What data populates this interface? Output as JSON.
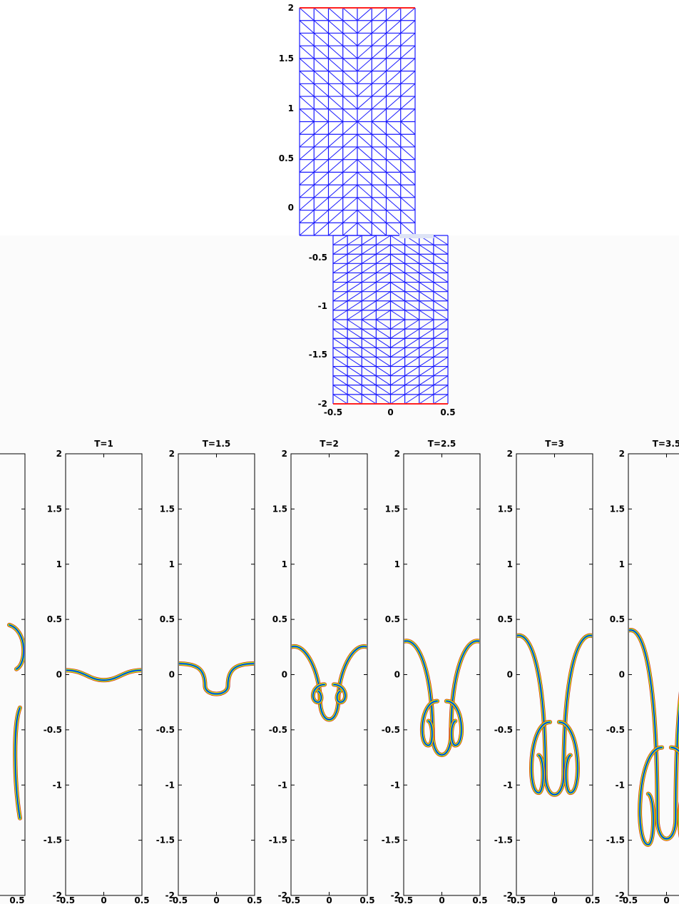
{
  "chart_data": [
    {
      "type": "mesh",
      "title": "",
      "xlim": [
        -0.5,
        0.5
      ],
      "ylim": [
        -2,
        2
      ],
      "x_ticks": [
        "-0.5",
        "0",
        "0.5"
      ],
      "y_ticks_upper": [
        "2",
        "1.5",
        "1",
        "0.5",
        "0"
      ],
      "y_ticks_lower": [
        "-0.5",
        "-1",
        "-1.5",
        "-2"
      ],
      "grid_cols": 8,
      "grid_rows_upper": 18,
      "grid_rows_lower": 18,
      "mesh_color": "#1a1aff",
      "boundary_color": "#ff2020"
    },
    {
      "type": "contour",
      "panels": [
        {
          "title": "",
          "interface_depth": 0.3
        },
        {
          "title": "T=1",
          "interface_depth": 0.05
        },
        {
          "title": "T=1.5",
          "interface_depth": 0.18
        },
        {
          "title": "T=2",
          "interface_depth": 0.42
        },
        {
          "title": "T=2.5",
          "interface_depth": 0.74
        },
        {
          "title": "T=3",
          "interface_depth": 1.1
        },
        {
          "title": "T=3.5",
          "interface_depth": 1.5
        }
      ],
      "xlim": [
        -0.5,
        0.5
      ],
      "ylim": [
        -2,
        2
      ],
      "x_ticks": [
        "-0.5",
        "0",
        "0.5"
      ],
      "y_ticks": [
        "2",
        "1.5",
        "1",
        "0.5",
        "0",
        "-0.5",
        "-1",
        "-1.5",
        "-2"
      ],
      "left_partial_xtick": "0.5",
      "colors": [
        "#b22222",
        "#ff8c00",
        "#ffd700",
        "#7cfc00",
        "#00ced1",
        "#1e90ff",
        "#0000cd"
      ]
    }
  ]
}
